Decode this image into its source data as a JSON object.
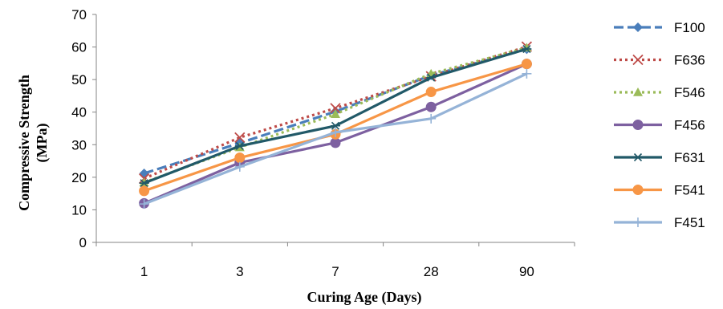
{
  "chart_data": {
    "type": "line",
    "categories": [
      "1",
      "3",
      "7",
      "28",
      "90"
    ],
    "xlabel": "Curing Age (Days)",
    "ylabel_lines": [
      "Compressive Strength",
      "(MPa)"
    ],
    "ylim": [
      0,
      70
    ],
    "yticks": [
      "0",
      "10",
      "20",
      "30",
      "40",
      "50",
      "60",
      "70"
    ],
    "grid": false,
    "legend_position": "right",
    "series": [
      {
        "name": "F100",
        "color": "#4a7ebb",
        "dash": "dash",
        "marker": "diamond",
        "values": [
          21.2,
          30.5,
          40.2,
          51.3,
          59.3
        ]
      },
      {
        "name": "F636",
        "color": "#be4b48",
        "dash": "dot",
        "marker": "x",
        "values": [
          19.6,
          32.2,
          41.2,
          51.0,
          60.1
        ]
      },
      {
        "name": "F546",
        "color": "#9bbb59",
        "dash": "dot",
        "marker": "triangle",
        "values": [
          18.4,
          29.2,
          39.4,
          51.8,
          59.8
        ]
      },
      {
        "name": "F456",
        "color": "#7d60a0",
        "dash": "solid",
        "marker": "circle",
        "values": [
          12.0,
          24.5,
          30.6,
          41.6,
          54.8
        ]
      },
      {
        "name": "F631",
        "color": "#215968",
        "dash": "solid",
        "marker": "asterisk",
        "values": [
          18.2,
          29.6,
          35.8,
          50.6,
          59.4
        ]
      },
      {
        "name": "F541",
        "color": "#f79646",
        "dash": "solid",
        "marker": "circle",
        "values": [
          15.8,
          26.0,
          33.2,
          46.2,
          54.8
        ]
      },
      {
        "name": "F451",
        "color": "#95b3d7",
        "dash": "solid",
        "marker": "plus",
        "values": [
          11.8,
          23.2,
          33.8,
          38.0,
          51.8
        ]
      }
    ]
  }
}
